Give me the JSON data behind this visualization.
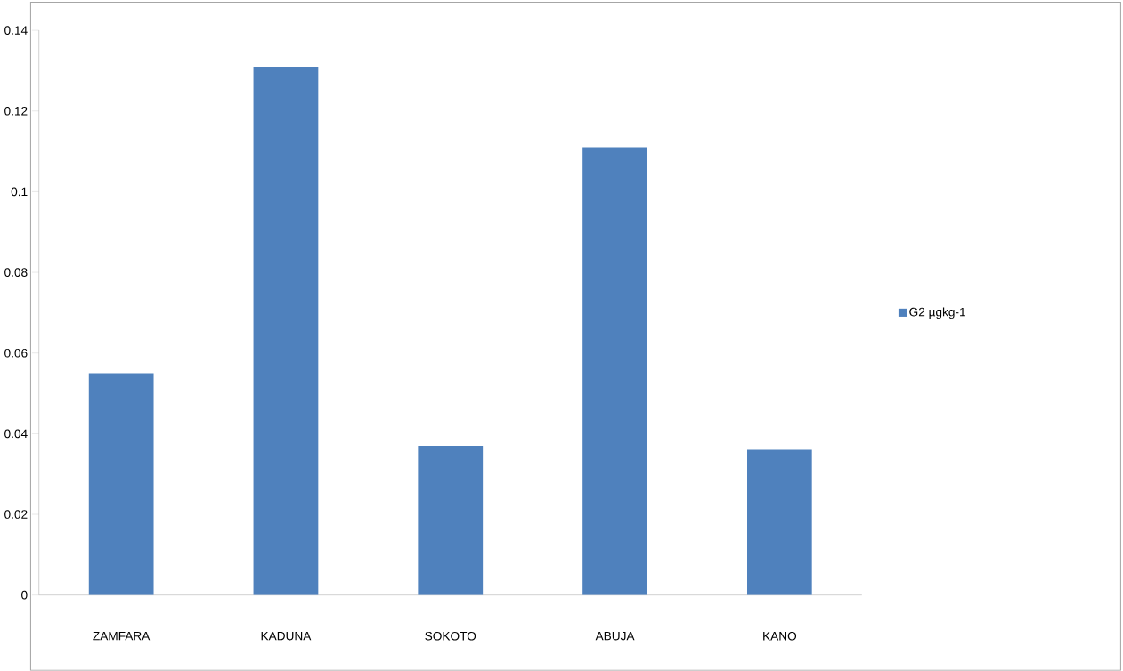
{
  "chart_data": {
    "type": "bar",
    "categories": [
      "ZAMFARA",
      "KADUNA",
      "SOKOTO",
      "ABUJA",
      "KANO"
    ],
    "series": [
      {
        "name": "G2 µgkg-1",
        "color": "#4f81bd",
        "values": [
          0.055,
          0.131,
          0.037,
          0.111,
          0.036
        ]
      }
    ],
    "ylim": [
      0,
      0.14
    ],
    "yticks": [
      0,
      0.02,
      0.04,
      0.06,
      0.08,
      0.1,
      0.12,
      0.14
    ],
    "grid": false,
    "legend": "right"
  }
}
